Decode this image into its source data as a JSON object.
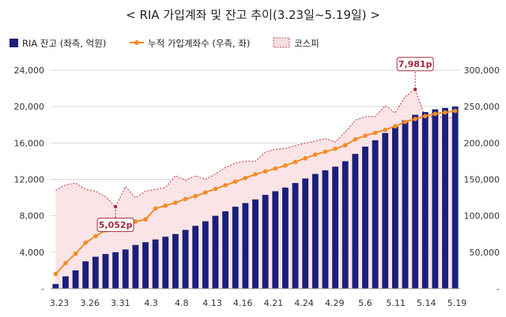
{
  "chart_data": {
    "title": "< RIA 가입계좌 및 잔고 추이(3.23일~5.19일) >",
    "type": "bar+line+area",
    "legend": {
      "placement": "top-left",
      "items": [
        {
          "label": "RIA 잔고 (좌측, 억원)",
          "kind": "bar",
          "color": "#1a1f7a"
        },
        {
          "label": "누적 가입계좌수 (우측, 좌)",
          "kind": "line",
          "color": "#f28c28"
        },
        {
          "label": "코스피",
          "kind": "area",
          "color": "#c94a5a"
        }
      ]
    },
    "y_left": {
      "min": 0,
      "max": 24000,
      "ticks": [
        "-",
        "4,000",
        "8,000",
        "12,000",
        "16,000",
        "20,000",
        "24,000"
      ]
    },
    "y_right": {
      "min": 0,
      "max": 300000,
      "ticks": [
        "-",
        "50,000",
        "100,000",
        "150,000",
        "200,000",
        "250,000",
        "300,000"
      ]
    },
    "x_tick_labels": [
      "3.23",
      "3.26",
      "3.31",
      "4.3",
      "4.8",
      "4.13",
      "4.16",
      "4.21",
      "4.24",
      "4.29",
      "5.6",
      "5.11",
      "5.14",
      "5.19"
    ],
    "n_days": 41,
    "series": [
      {
        "name": "RIA 잔고 (좌측, 억원)",
        "axis": "left",
        "values": [
          500,
          1350,
          2000,
          3000,
          3500,
          3800,
          4000,
          4300,
          4800,
          5100,
          5400,
          5700,
          6000,
          6450,
          6900,
          7400,
          8000,
          8500,
          9000,
          9400,
          9800,
          10300,
          10700,
          11100,
          11600,
          12100,
          12600,
          13000,
          13400,
          14000,
          14800,
          15600,
          16300,
          17100,
          17800,
          18500,
          19100,
          19400,
          19700,
          19850,
          20000
        ]
      },
      {
        "name": "누적 가입계좌수 (우측, 좌)",
        "axis": "right",
        "values": [
          20000,
          35000,
          48000,
          63000,
          72000,
          80000,
          85000,
          88000,
          92000,
          95000,
          110000,
          114000,
          118000,
          123000,
          127000,
          132000,
          137000,
          142000,
          147000,
          152000,
          157000,
          161000,
          165000,
          169000,
          174000,
          179000,
          184000,
          188000,
          192000,
          197000,
          205000,
          210000,
          214000,
          218000,
          223000,
          229000,
          233000,
          237000,
          240000,
          242000,
          244000
        ]
      },
      {
        "name": "코스피",
        "axis": "left",
        "values": [
          10800,
          11400,
          11600,
          10900,
          10700,
          10100,
          9000,
          11200,
          10000,
          10700,
          10900,
          11100,
          12400,
          11900,
          12400,
          12000,
          12600,
          13300,
          13800,
          14000,
          14000,
          15000,
          15300,
          15400,
          15700,
          16000,
          16200,
          16500,
          16100,
          17200,
          18500,
          18900,
          18900,
          20100,
          19300,
          21100,
          21900,
          18800,
          18900,
          18800,
          18800
        ]
      }
    ],
    "annotations": [
      {
        "text": "5,052p",
        "series": "코스피",
        "index": 6
      },
      {
        "text": "7,981p",
        "series": "코스피",
        "index": 36
      }
    ]
  }
}
